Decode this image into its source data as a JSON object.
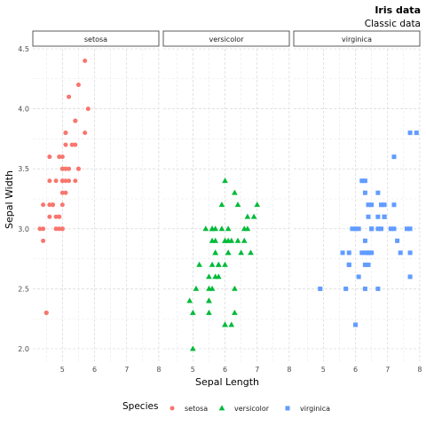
{
  "chart_data": {
    "type": "scatter",
    "title": "Iris data",
    "subtitle": "Classic data",
    "xlabel": "Sepal Length",
    "ylabel": "Sepal Width",
    "xlim": [
      4.3,
      7.9
    ],
    "ylim": [
      2.0,
      4.4
    ],
    "x_ticks": [
      5,
      6,
      7,
      8
    ],
    "y_ticks": [
      2.0,
      2.5,
      3.0,
      3.5,
      4.0,
      4.5
    ],
    "grid": true,
    "legend_title": "Species",
    "legend_position": "bottom",
    "facets": [
      "setosa",
      "versicolor",
      "virginica"
    ],
    "series": [
      {
        "name": "setosa",
        "color": "#F8766D",
        "shape": "circle",
        "x": [
          4.4,
          4.4,
          4.5,
          4.6,
          4.6,
          4.6,
          4.7,
          4.7,
          4.8,
          4.8,
          4.8,
          4.9,
          4.9,
          4.9,
          5.0,
          5.0,
          5.0,
          5.0,
          5.0,
          5.0,
          5.0,
          5.0,
          5.1,
          5.1,
          5.1,
          5.1,
          5.1,
          5.1,
          5.1,
          5.2,
          5.2,
          5.2,
          5.3,
          5.4,
          5.4,
          5.4,
          5.4,
          5.5,
          5.5,
          5.5,
          5.7,
          5.7,
          5.8,
          4.3,
          4.4,
          4.5,
          4.6,
          4.7,
          4.9,
          5.0
        ],
        "y": [
          3.0,
          2.9,
          2.3,
          3.4,
          3.2,
          3.6,
          3.2,
          3.2,
          3.4,
          3.0,
          3.1,
          3.0,
          3.1,
          3.6,
          3.0,
          3.2,
          3.3,
          3.4,
          3.5,
          3.5,
          3.6,
          3.4,
          3.5,
          3.3,
          3.8,
          3.8,
          3.7,
          3.4,
          3.5,
          3.5,
          4.1,
          3.4,
          3.7,
          3.9,
          3.4,
          3.7,
          3.9,
          3.5,
          4.2,
          3.5,
          3.8,
          4.4,
          4.0,
          3.0,
          3.2,
          2.3,
          3.1,
          3.2,
          3.1,
          3.0
        ]
      },
      {
        "name": "versicolor",
        "color": "#00BA38",
        "shape": "triangle",
        "x": [
          4.9,
          5.0,
          5.0,
          5.1,
          5.2,
          5.4,
          5.5,
          5.5,
          5.5,
          5.5,
          5.5,
          5.6,
          5.6,
          5.6,
          5.6,
          5.6,
          5.7,
          5.7,
          5.7,
          5.7,
          5.7,
          5.8,
          5.8,
          5.8,
          5.9,
          5.9,
          6.0,
          6.0,
          6.0,
          6.0,
          6.0,
          6.0,
          6.1,
          6.1,
          6.1,
          6.1,
          6.2,
          6.2,
          6.3,
          6.3,
          6.3,
          6.4,
          6.4,
          6.5,
          6.6,
          6.6,
          6.7,
          6.7,
          6.8,
          6.9,
          7.0
        ],
        "y": [
          2.4,
          2.0,
          2.3,
          2.5,
          2.7,
          3.0,
          2.3,
          2.4,
          2.5,
          2.6,
          2.4,
          2.9,
          3.0,
          2.7,
          2.5,
          3.0,
          2.8,
          2.6,
          2.9,
          3.0,
          2.8,
          2.7,
          2.6,
          2.7,
          3.0,
          3.2,
          2.2,
          2.9,
          2.7,
          3.4,
          2.2,
          2.9,
          2.8,
          3.0,
          2.9,
          2.8,
          2.2,
          2.9,
          3.3,
          2.5,
          2.3,
          3.2,
          2.9,
          2.8,
          3.0,
          2.9,
          3.1,
          3.0,
          2.8,
          3.1,
          3.2
        ]
      },
      {
        "name": "virginica",
        "color": "#619CFF",
        "shape": "square",
        "x": [
          4.9,
          5.6,
          5.7,
          5.8,
          5.8,
          5.8,
          5.9,
          6.0,
          6.0,
          6.1,
          6.1,
          6.2,
          6.2,
          6.3,
          6.3,
          6.3,
          6.3,
          6.3,
          6.3,
          6.4,
          6.4,
          6.4,
          6.4,
          6.4,
          6.5,
          6.5,
          6.5,
          6.5,
          6.7,
          6.7,
          6.7,
          6.7,
          6.8,
          6.8,
          6.9,
          6.9,
          6.9,
          7.1,
          7.2,
          7.2,
          7.2,
          7.3,
          7.4,
          7.6,
          7.7,
          7.7,
          7.7,
          7.7,
          7.9
        ],
        "y": [
          2.5,
          2.8,
          2.5,
          2.7,
          2.8,
          2.7,
          3.0,
          2.2,
          3.0,
          2.6,
          3.0,
          2.8,
          3.4,
          3.3,
          2.9,
          2.8,
          2.7,
          2.5,
          3.4,
          2.8,
          3.2,
          3.1,
          2.7,
          2.8,
          3.0,
          3.2,
          3.0,
          2.8,
          2.5,
          3.3,
          3.1,
          3.0,
          3.0,
          3.2,
          3.1,
          3.2,
          3.1,
          3.0,
          3.6,
          3.2,
          3.0,
          2.9,
          2.8,
          3.0,
          3.8,
          2.6,
          2.8,
          3.0,
          3.8
        ]
      }
    ]
  }
}
